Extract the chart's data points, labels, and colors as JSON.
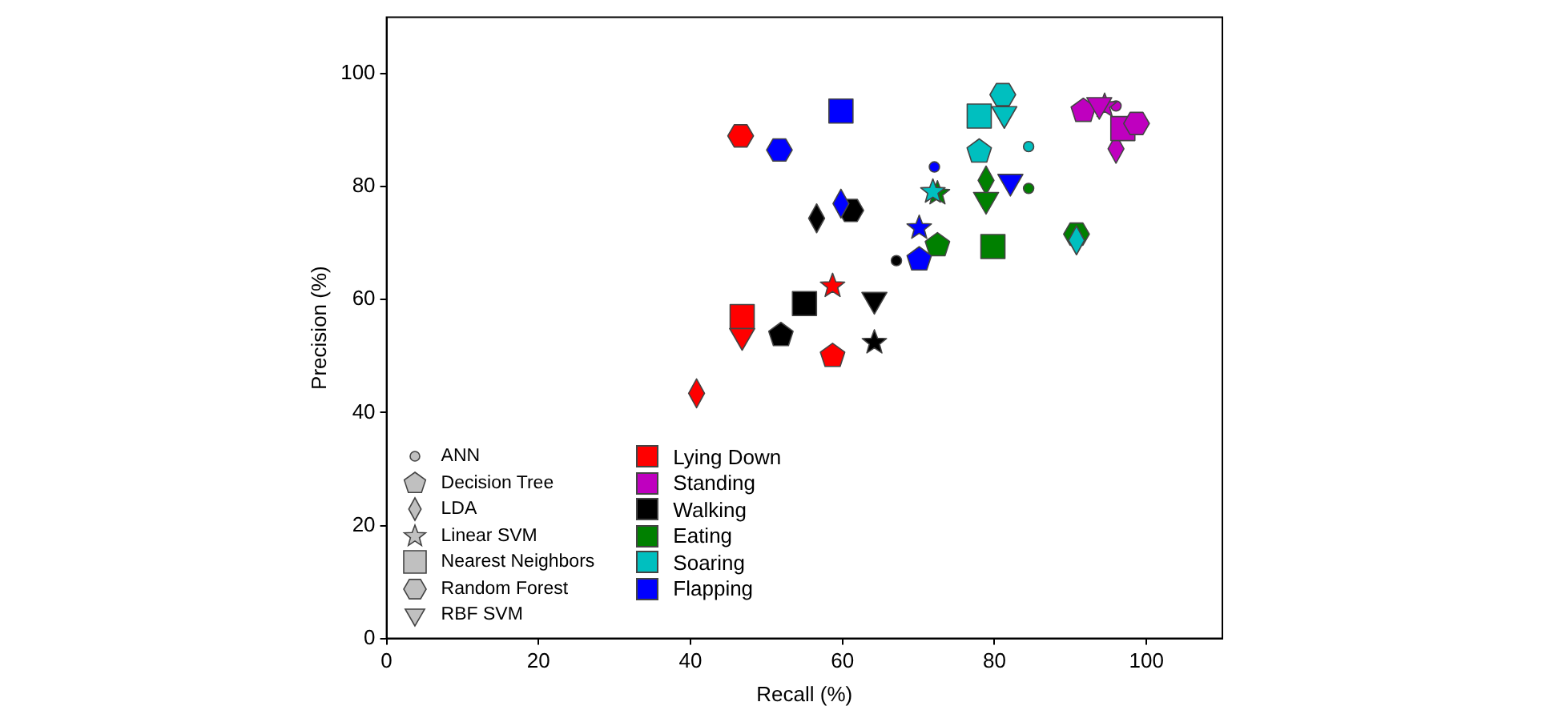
{
  "chart_data": {
    "type": "scatter",
    "xlabel": "Recall (%)",
    "ylabel": "Precision (%)",
    "xlim": [
      0,
      110
    ],
    "ylim": [
      0,
      110
    ],
    "xticks": [
      0,
      20,
      40,
      60,
      80,
      100
    ],
    "yticks": [
      0,
      20,
      40,
      60,
      80,
      100
    ],
    "grid": false,
    "legend": "bottom left",
    "annotations": [
      "ANN",
      "Decision Tree",
      "LDA",
      "Linear SVM",
      "Nearest Neighbors",
      "Random Forest",
      "RBF SVM"
    ],
    "series": [
      {
        "name": "Lying Down",
        "color": "#ff0000",
        "x": [
          null,
          58.7,
          40.8,
          58.7,
          46.8,
          46.6,
          46.8
        ],
        "values": [
          null,
          50.0,
          43.4,
          62.4,
          57.0,
          89.0,
          53.6
        ]
      },
      {
        "name": "Standing",
        "color": "#bf00bf",
        "x": [
          96.0,
          91.7,
          96.0,
          94.5,
          96.9,
          98.7,
          93.8
        ],
        "values": [
          94.3,
          93.4,
          86.7,
          94.3,
          90.3,
          91.2,
          94.5
        ]
      },
      {
        "name": "Walking",
        "color": "#000000",
        "x": [
          67.1,
          51.9,
          56.6,
          64.2,
          55.0,
          61.1,
          64.2
        ],
        "values": [
          66.9,
          53.7,
          74.4,
          52.4,
          59.3,
          75.8,
          60.0
        ]
      },
      {
        "name": "Eating",
        "color": "#008000",
        "x": [
          84.5,
          72.5,
          78.9,
          72.5,
          79.8,
          90.8,
          78.9
        ],
        "values": [
          79.7,
          69.6,
          81.1,
          78.8,
          69.4,
          71.6,
          77.7
        ]
      },
      {
        "name": "Soaring",
        "color": "#00bfbf",
        "x": [
          84.5,
          78.0,
          90.8,
          71.9,
          78.0,
          81.1,
          81.3
        ],
        "values": [
          87.1,
          86.2,
          70.5,
          79.1,
          92.5,
          96.3,
          92.9
        ]
      },
      {
        "name": "Flapping",
        "color": "#0000ff",
        "x": [
          72.1,
          70.1,
          59.8,
          70.1,
          59.8,
          51.7,
          82.1
        ],
        "values": [
          83.5,
          67.1,
          77.0,
          72.7,
          93.4,
          86.5,
          80.9
        ]
      }
    ]
  }
}
